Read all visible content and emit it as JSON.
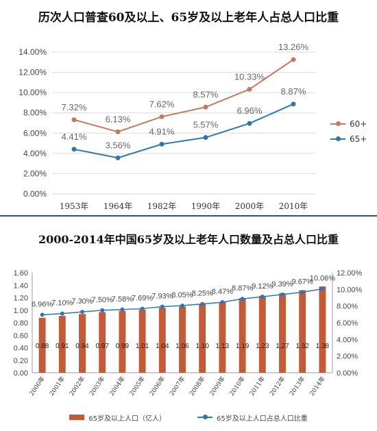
{
  "titles": {
    "chart1": "历次人口普查60及以上、65岁及以上老年人占总人口比重",
    "chart2": "2000-2014年中国65岁及以上老年人口数量及占总人口比重"
  },
  "colors": {
    "series60": "#c8775a",
    "series65": "#2e75b6",
    "bar": "#c55a36",
    "line2": "#2e75b6"
  },
  "chart_data": [
    {
      "type": "line",
      "title": "历次人口普查60及以上、65岁及以上老年人占总人口比重",
      "categories": [
        "1953年",
        "1964年",
        "1982年",
        "1990年",
        "2000年",
        "2010年"
      ],
      "y_ticks": [
        "0.00%",
        "2.00%",
        "4.00%",
        "6.00%",
        "8.00%",
        "10.00%",
        "12.00%",
        "14.00%"
      ],
      "ylim": [
        0,
        14
      ],
      "grid": true,
      "legend_position": "right",
      "series": [
        {
          "name": "60+",
          "values": [
            7.32,
            6.13,
            7.62,
            8.57,
            10.33,
            13.26
          ],
          "labels": [
            "7.32%",
            "6.13%",
            "7.62%",
            "8.57%",
            "10.33%",
            "13.26%"
          ]
        },
        {
          "name": "65+",
          "values": [
            4.41,
            3.56,
            4.91,
            5.57,
            6.96,
            8.87
          ],
          "labels": [
            "4.41%",
            "3.56%",
            "4.91%",
            "5.57%",
            "6.96%",
            "8.87%"
          ]
        }
      ]
    },
    {
      "type": "bar",
      "title": "2000-2014年中国65岁及以上老年人口数量及占总人口比重",
      "categories": [
        "2000年",
        "2001年",
        "2002年",
        "2003年",
        "2004年",
        "2005年",
        "2006年",
        "2007年",
        "2008年",
        "2009年",
        "2010年",
        "2011年",
        "2012年",
        "2013年",
        "2014年"
      ],
      "y_left_ticks": [
        "0.00",
        "0.20",
        "0.40",
        "0.60",
        "0.80",
        "1.00",
        "1.20",
        "1.40",
        "1.60"
      ],
      "y_right_ticks": [
        "0.00%",
        "2.00%",
        "4.00%",
        "6.00%",
        "8.00%",
        "10.00%",
        "12.00%"
      ],
      "ylim_left": [
        0,
        1.6
      ],
      "ylim_right": [
        0,
        12
      ],
      "grid": false,
      "legend_position": "bottom",
      "series": [
        {
          "name": "65岁及以上人口（亿人）",
          "type": "bar",
          "values": [
            0.88,
            0.91,
            0.94,
            0.97,
            0.99,
            1.01,
            1.04,
            1.06,
            1.1,
            1.13,
            1.19,
            1.23,
            1.27,
            1.32,
            1.38
          ],
          "labels": [
            "0.88",
            "0.91",
            "0.94",
            "0.97",
            "0.99",
            "1.01",
            "1.04",
            "1.06",
            "1.10",
            "1.13",
            "1.19",
            "1.23",
            "1.27",
            "1.32",
            "1.38"
          ]
        },
        {
          "name": "65岁及以上人口占总人口比重",
          "type": "line",
          "axis": "right",
          "values": [
            6.96,
            7.1,
            7.3,
            7.5,
            7.58,
            7.69,
            7.93,
            8.05,
            8.25,
            8.47,
            8.87,
            9.12,
            9.39,
            9.67,
            10.06
          ],
          "labels": [
            "6.96%",
            "7.10%",
            "7.30%",
            "7.50%",
            "7.58%",
            "7.69%",
            "7.93%",
            "8.05%",
            "8.25%",
            "8.47%",
            "8.87%",
            "9.12%",
            "9.39%",
            "9.67%",
            "10.06%"
          ]
        }
      ]
    }
  ]
}
